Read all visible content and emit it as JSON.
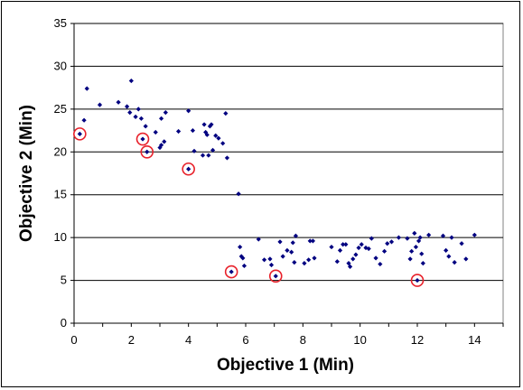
{
  "chart_data": {
    "type": "scatter",
    "xlabel": "Objective 1 (Min)",
    "ylabel": "Objective 2 (Min)",
    "xlim": [
      0,
      15
    ],
    "ylim": [
      0,
      35
    ],
    "x_ticks": [
      0,
      2,
      4,
      6,
      8,
      10,
      12,
      14
    ],
    "y_ticks": [
      0,
      5,
      10,
      15,
      20,
      25,
      30,
      35
    ],
    "grid": "horizontal",
    "legend": "none",
    "colors": {
      "points": "#000080",
      "highlight": "#e8202a",
      "grid": "#000000"
    },
    "series": [
      {
        "values": [
          [
            0.2,
            22.1
          ],
          [
            0.35,
            23.7
          ],
          [
            0.45,
            27.4
          ],
          [
            0.9,
            25.5
          ],
          [
            1.55,
            25.8
          ],
          [
            1.85,
            25.3
          ],
          [
            2.0,
            28.3
          ],
          [
            1.95,
            24.6
          ],
          [
            2.15,
            24.1
          ],
          [
            2.25,
            25.0
          ],
          [
            2.35,
            23.9
          ],
          [
            2.4,
            21.5
          ],
          [
            2.55,
            20.0
          ],
          [
            2.5,
            23.0
          ],
          [
            2.85,
            22.3
          ],
          [
            3.05,
            23.9
          ],
          [
            3.2,
            24.6
          ],
          [
            3.0,
            20.5
          ],
          [
            3.05,
            20.8
          ],
          [
            3.15,
            21.2
          ],
          [
            3.65,
            22.4
          ],
          [
            4.0,
            18.0
          ],
          [
            4.0,
            24.8
          ],
          [
            4.15,
            22.5
          ],
          [
            4.2,
            20.1
          ],
          [
            4.55,
            23.2
          ],
          [
            4.6,
            22.3
          ],
          [
            4.65,
            22.0
          ],
          [
            4.7,
            19.6
          ],
          [
            4.75,
            23.0
          ],
          [
            4.8,
            23.2
          ],
          [
            4.85,
            20.2
          ],
          [
            4.5,
            19.6
          ],
          [
            4.95,
            21.9
          ],
          [
            5.05,
            21.6
          ],
          [
            5.2,
            21.0
          ],
          [
            5.3,
            24.5
          ],
          [
            5.35,
            19.3
          ],
          [
            5.5,
            6.0
          ],
          [
            5.75,
            15.1
          ],
          [
            5.8,
            8.9
          ],
          [
            5.85,
            7.8
          ],
          [
            5.9,
            7.6
          ],
          [
            5.95,
            6.7
          ],
          [
            6.45,
            9.8
          ],
          [
            6.65,
            7.4
          ],
          [
            6.85,
            7.5
          ],
          [
            6.9,
            6.8
          ],
          [
            7.05,
            5.5
          ],
          [
            7.2,
            9.5
          ],
          [
            7.3,
            7.8
          ],
          [
            7.45,
            8.5
          ],
          [
            7.6,
            8.3
          ],
          [
            7.65,
            9.4
          ],
          [
            7.75,
            10.2
          ],
          [
            7.7,
            7.1
          ],
          [
            8.05,
            7.0
          ],
          [
            8.2,
            7.4
          ],
          [
            8.25,
            9.6
          ],
          [
            8.35,
            9.6
          ],
          [
            8.4,
            7.6
          ],
          [
            9.0,
            8.9
          ],
          [
            9.2,
            7.2
          ],
          [
            9.3,
            8.5
          ],
          [
            9.4,
            9.2
          ],
          [
            9.5,
            9.2
          ],
          [
            9.6,
            7.0
          ],
          [
            9.65,
            6.6
          ],
          [
            9.75,
            7.5
          ],
          [
            9.85,
            8.0
          ],
          [
            9.95,
            8.8
          ],
          [
            10.05,
            9.2
          ],
          [
            10.2,
            8.8
          ],
          [
            10.3,
            8.7
          ],
          [
            10.4,
            9.9
          ],
          [
            10.55,
            7.6
          ],
          [
            10.7,
            6.9
          ],
          [
            10.85,
            8.4
          ],
          [
            10.95,
            9.3
          ],
          [
            11.1,
            9.5
          ],
          [
            11.35,
            10.0
          ],
          [
            11.65,
            9.9
          ],
          [
            11.75,
            7.5
          ],
          [
            11.8,
            8.4
          ],
          [
            11.9,
            10.5
          ],
          [
            11.95,
            8.9
          ],
          [
            12.0,
            5.0
          ],
          [
            12.05,
            9.6
          ],
          [
            12.1,
            10.0
          ],
          [
            12.15,
            8.1
          ],
          [
            12.2,
            7.0
          ],
          [
            12.4,
            10.3
          ],
          [
            12.9,
            10.2
          ],
          [
            13.0,
            8.5
          ],
          [
            13.1,
            7.8
          ],
          [
            13.2,
            10.0
          ],
          [
            13.3,
            7.1
          ],
          [
            13.55,
            9.3
          ],
          [
            13.7,
            7.5
          ],
          [
            14.0,
            10.3
          ]
        ]
      }
    ],
    "highlighted_points": [
      [
        0.2,
        22.1
      ],
      [
        2.4,
        21.5
      ],
      [
        2.55,
        20.0
      ],
      [
        4.0,
        18.0
      ],
      [
        5.5,
        6.0
      ],
      [
        7.05,
        5.5
      ],
      [
        12.0,
        5.0
      ]
    ]
  }
}
